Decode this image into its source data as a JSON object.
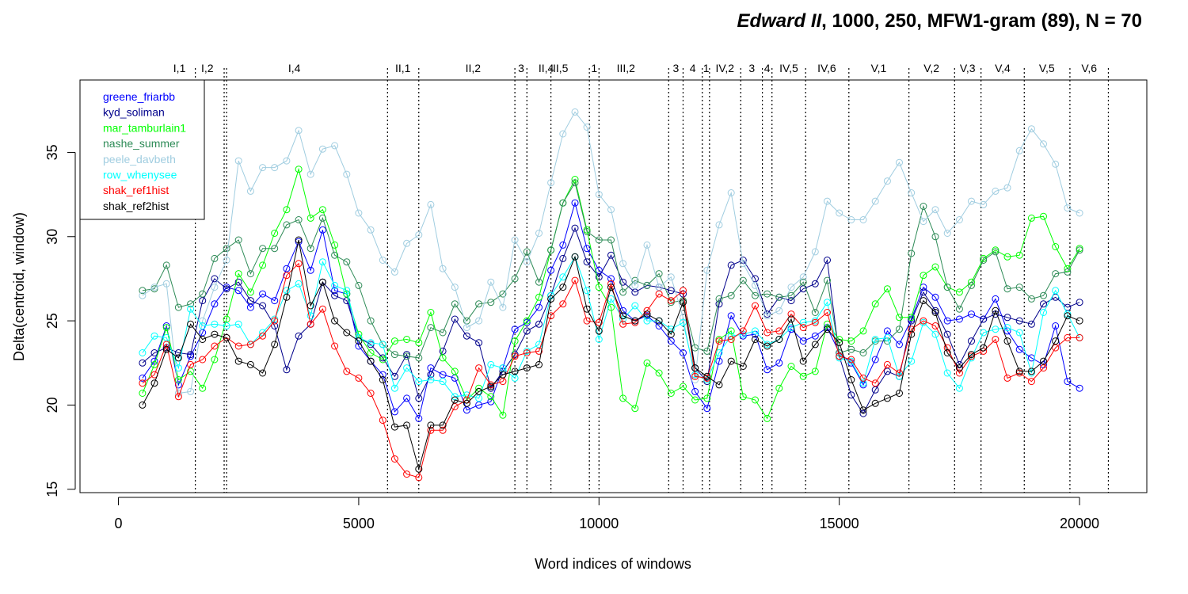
{
  "chart_data": {
    "type": "line",
    "title_italic": "Edward II",
    "title_rest": ", 1000, 250, MFW1-gram (89), N = 70",
    "xlabel": "Word indices of windows",
    "ylabel": "Delta(centroid, window)",
    "xlim": [
      -800,
      21400
    ],
    "ylim": [
      14.8,
      39.3
    ],
    "xticks": [
      0,
      5000,
      10000,
      15000,
      20000
    ],
    "xtick_labels": [
      "0",
      "5000",
      "10000",
      "15000",
      "20000"
    ],
    "yticks": [
      15,
      20,
      25,
      30,
      35
    ],
    "ytick_labels": [
      "15",
      "20",
      "25",
      "30",
      "35"
    ],
    "legend_position": "top-left",
    "x": [
      500,
      750,
      1000,
      1250,
      1500,
      1750,
      2000,
      2250,
      2500,
      2750,
      3000,
      3250,
      3500,
      3750,
      4000,
      4250,
      4500,
      4750,
      5000,
      5250,
      5500,
      5750,
      6000,
      6250,
      6500,
      6750,
      7000,
      7250,
      7500,
      7750,
      8000,
      8250,
      8500,
      8750,
      9000,
      9250,
      9500,
      9750,
      10000,
      10250,
      10500,
      10750,
      11000,
      11250,
      11500,
      11750,
      12000,
      12250,
      12500,
      12750,
      13000,
      13250,
      13500,
      13750,
      14000,
      14250,
      14500,
      14750,
      15000,
      15250,
      15500,
      15750,
      16000,
      16250,
      16500,
      16750,
      17000,
      17250,
      17500,
      17750,
      18000,
      18250,
      18500,
      18750,
      19000,
      19250,
      19500,
      19750,
      20000
    ],
    "series": [
      {
        "name": "greene_friarbb",
        "color": "#0000ff",
        "values": [
          21.6,
          22.6,
          24.7,
          21.2,
          22.9,
          24.3,
          26.0,
          27.0,
          26.8,
          25.8,
          26.6,
          26.2,
          28.1,
          29.7,
          28.0,
          30.4,
          26.8,
          26.6,
          23.5,
          22.6,
          21.8,
          19.6,
          20.4,
          19.2,
          22.2,
          21.8,
          21.6,
          19.7,
          20.0,
          20.2,
          22.2,
          24.5,
          24.9,
          25.8,
          28.0,
          29.5,
          32.0,
          29.3,
          28.0,
          27.5,
          25.6,
          25.0,
          25.3,
          24.7,
          23.8,
          23.1,
          20.8,
          19.8,
          22.6,
          25.3,
          24.1,
          24.2,
          22.1,
          22.5,
          24.5,
          23.8,
          24.1,
          24.6,
          23.1,
          22.5,
          21.2,
          22.7,
          24.4,
          23.6,
          25.1,
          27.0,
          26.4,
          25.0,
          25.1,
          25.4,
          25.1,
          26.3,
          24.4,
          23.3,
          22.8,
          22.4,
          24.7,
          21.4,
          21.0
        ]
      },
      {
        "name": "kyd_soliman",
        "color": "#00008b",
        "values": [
          22.5,
          23.1,
          23.4,
          23.1,
          23.0,
          26.2,
          27.5,
          26.9,
          27.3,
          26.2,
          25.9,
          24.7,
          22.1,
          24.1,
          24.8,
          27.3,
          26.5,
          26.2,
          24.0,
          23.6,
          22.8,
          21.7,
          23.0,
          20.4,
          21.8,
          23.2,
          25.1,
          24.1,
          23.7,
          21.0,
          22.0,
          23.0,
          24.4,
          24.8,
          26.5,
          28.7,
          30.5,
          28.5,
          27.6,
          28.9,
          27.3,
          26.7,
          27.1,
          27.0,
          26.8,
          26.6,
          22.2,
          21.4,
          26.0,
          28.3,
          28.6,
          27.5,
          25.4,
          26.4,
          26.2,
          26.9,
          27.2,
          28.6,
          22.9,
          20.6,
          19.5,
          20.9,
          22.0,
          21.7,
          25.0,
          26.7,
          25.6,
          24.2,
          22.4,
          23.8,
          25.1,
          25.4,
          25.2,
          25.0,
          24.8,
          26.0,
          26.4,
          25.8,
          26.1
        ]
      },
      {
        "name": "mar_tamburlain1",
        "color": "#00ff00",
        "values": [
          20.7,
          22.4,
          24.6,
          21.5,
          22.0,
          21.0,
          22.7,
          25.1,
          27.8,
          26.7,
          28.3,
          30.2,
          31.6,
          34.0,
          31.1,
          31.6,
          29.5,
          26.6,
          24.2,
          23.1,
          22.7,
          23.8,
          23.9,
          23.7,
          25.5,
          22.8,
          22.0,
          20.3,
          21.0,
          20.5,
          19.4,
          23.8,
          25.0,
          26.4,
          29.2,
          32.0,
          33.4,
          30.4,
          27.0,
          25.8,
          20.4,
          19.8,
          22.5,
          21.9,
          20.7,
          21.1,
          20.3,
          20.4,
          23.9,
          24.4,
          20.5,
          20.3,
          19.2,
          21.0,
          22.3,
          21.7,
          22.0,
          24.8,
          23.9,
          23.8,
          24.4,
          26.0,
          26.9,
          25.2,
          25.2,
          27.7,
          28.2,
          27.0,
          26.7,
          27.3,
          28.7,
          29.2,
          28.8,
          28.9,
          31.1,
          31.2,
          29.4,
          28.1,
          29.3
        ]
      },
      {
        "name": "nashe_summer",
        "color": "#2e8b57",
        "values": [
          26.8,
          26.9,
          28.3,
          25.8,
          26.0,
          26.6,
          28.7,
          29.3,
          29.8,
          27.8,
          29.3,
          29.3,
          30.7,
          31.0,
          29.3,
          31.1,
          28.9,
          28.5,
          27.1,
          25.0,
          23.6,
          23.0,
          22.9,
          22.8,
          24.6,
          24.3,
          26.0,
          25.0,
          26.0,
          26.1,
          26.6,
          27.5,
          29.1,
          27.3,
          29.2,
          32.0,
          33.2,
          30.3,
          29.8,
          29.8,
          26.7,
          27.4,
          27.1,
          27.8,
          26.1,
          26.2,
          23.4,
          23.2,
          26.3,
          26.5,
          27.4,
          26.5,
          26.6,
          26.4,
          26.5,
          27.3,
          25.5,
          27.4,
          23.1,
          23.3,
          23.1,
          23.8,
          23.8,
          24.5,
          29.0,
          31.8,
          30.0,
          27.0,
          25.7,
          27.1,
          28.6,
          29.1,
          26.9,
          27.0,
          26.3,
          26.5,
          27.8,
          27.9,
          29.2
        ]
      },
      {
        "name": "peele_davbeth",
        "color": "#a0cde0",
        "values": [
          26.5,
          27.0,
          27.2,
          20.7,
          20.8,
          25.0,
          27.0,
          28.6,
          34.5,
          32.7,
          34.1,
          34.1,
          34.5,
          36.3,
          33.7,
          35.2,
          35.4,
          33.7,
          31.4,
          30.4,
          28.6,
          27.9,
          29.6,
          30.1,
          31.9,
          28.1,
          27.0,
          24.6,
          25.0,
          27.3,
          25.8,
          29.8,
          28.5,
          30.2,
          33.2,
          36.1,
          37.4,
          36.5,
          32.5,
          31.6,
          28.4,
          27.1,
          29.5,
          27.0,
          27.6,
          25.2,
          21.5,
          28.0,
          30.7,
          32.6,
          28.4,
          27.1,
          25.3,
          25.6,
          27.0,
          27.6,
          29.1,
          32.1,
          31.4,
          31.0,
          31.0,
          32.1,
          33.3,
          34.4,
          32.6,
          30.9,
          31.6,
          30.2,
          31.0,
          32.1,
          31.9,
          32.7,
          32.9,
          35.1,
          36.4,
          35.5,
          34.3,
          31.7,
          31.4
        ]
      },
      {
        "name": "row_whenysee",
        "color": "#00ffff",
        "values": [
          23.1,
          24.1,
          24.0,
          22.2,
          25.7,
          24.7,
          24.8,
          24.7,
          24.8,
          23.6,
          24.3,
          25.1,
          26.8,
          27.2,
          25.3,
          28.5,
          27.1,
          26.8,
          24.0,
          23.7,
          23.6,
          21.0,
          22.2,
          21.4,
          21.5,
          21.4,
          20.5,
          20.6,
          20.4,
          22.4,
          22.2,
          21.6,
          23.2,
          23.6,
          26.5,
          27.6,
          28.8,
          26.8,
          23.9,
          26.3,
          25.1,
          25.9,
          25.0,
          25.0,
          24.5,
          24.9,
          21.8,
          21.5,
          23.1,
          24.1,
          24.2,
          24.4,
          23.6,
          23.9,
          24.6,
          24.9,
          25.0,
          26.1,
          22.8,
          22.6,
          21.3,
          23.9,
          24.0,
          21.7,
          22.6,
          24.9,
          24.2,
          21.9,
          21.0,
          22.8,
          24.3,
          24.5,
          24.6,
          24.3,
          21.9,
          25.5,
          26.8,
          25.4,
          24.0
        ]
      },
      {
        "name": "shak_ref1hist",
        "color": "#ff0000",
        "values": [
          21.3,
          21.8,
          23.6,
          20.5,
          22.4,
          22.7,
          23.5,
          24.0,
          23.5,
          23.6,
          24.1,
          25.0,
          27.7,
          28.4,
          24.8,
          25.7,
          23.5,
          22.0,
          21.6,
          20.7,
          19.1,
          16.8,
          15.9,
          15.7,
          18.5,
          18.5,
          19.9,
          20.3,
          22.2,
          21.2,
          21.4,
          22.9,
          23.1,
          23.2,
          25.3,
          26.0,
          27.4,
          25.0,
          24.9,
          27.2,
          24.8,
          24.9,
          25.6,
          26.6,
          26.2,
          26.8,
          21.7,
          21.6,
          23.8,
          23.9,
          24.4,
          25.9,
          24.3,
          24.4,
          25.4,
          24.6,
          24.9,
          25.5,
          22.9,
          22.7,
          21.6,
          21.3,
          22.4,
          21.9,
          24.5,
          25.0,
          24.7,
          23.4,
          21.9,
          22.9,
          23.2,
          23.9,
          21.6,
          21.9,
          21.4,
          22.2,
          23.4,
          24.0,
          24.0
        ]
      },
      {
        "name": "shak_ref2hist",
        "color": "#000000",
        "values": [
          20.0,
          21.3,
          23.3,
          22.8,
          24.8,
          23.9,
          24.2,
          24.0,
          22.6,
          22.4,
          21.9,
          23.6,
          26.4,
          29.8,
          25.9,
          27.3,
          25.0,
          24.3,
          23.8,
          22.6,
          21.5,
          18.7,
          18.8,
          16.2,
          18.8,
          18.8,
          20.3,
          20.1,
          20.8,
          21.1,
          21.8,
          22.0,
          22.2,
          22.4,
          26.3,
          27.0,
          28.8,
          25.7,
          24.4,
          27.0,
          25.3,
          25.0,
          25.4,
          25.0,
          24.2,
          26.1,
          22.2,
          21.7,
          21.2,
          22.6,
          22.3,
          23.9,
          23.5,
          23.9,
          25.1,
          22.6,
          23.6,
          24.5,
          23.7,
          21.5,
          19.7,
          20.1,
          20.4,
          20.7,
          24.2,
          26.2,
          25.5,
          23.1,
          22.2,
          23.0,
          23.4,
          25.6,
          23.8,
          22.0,
          22.0,
          22.6,
          23.8,
          25.3,
          25.0
        ]
      }
    ],
    "scene_boundaries": [
      1600,
      2200,
      2250,
      5600,
      6250,
      8250,
      8500,
      9000,
      9800,
      10000,
      11450,
      11750,
      12150,
      12300,
      12950,
      13400,
      13600,
      14300,
      15200,
      16450,
      17400,
      17950,
      18850,
      19800,
      20600
    ],
    "scene_labels": [
      {
        "label": "I,1",
        "x": 1270
      },
      {
        "label": "I,2",
        "x": 1850
      },
      {
        "label": "I,4",
        "x": 3660
      },
      {
        "label": "II,1",
        "x": 5920
      },
      {
        "label": "II,2",
        "x": 7380
      },
      {
        "label": "3",
        "x": 8380
      },
      {
        "label": "II,4",
        "x": 8900
      },
      {
        "label": "II,5",
        "x": 9200
      },
      {
        "label": "1",
        "x": 9900
      },
      {
        "label": "III,2",
        "x": 10560
      },
      {
        "label": "3",
        "x": 11600
      },
      {
        "label": "4",
        "x": 11950
      },
      {
        "label": "1",
        "x": 12230
      },
      {
        "label": "IV,2",
        "x": 12620
      },
      {
        "label": "3",
        "x": 13180
      },
      {
        "label": "4",
        "x": 13500
      },
      {
        "label": "IV,5",
        "x": 13950
      },
      {
        "label": "IV,6",
        "x": 14740
      },
      {
        "label": "V,1",
        "x": 15820
      },
      {
        "label": "V,2",
        "x": 16920
      },
      {
        "label": "V,3",
        "x": 17670
      },
      {
        "label": "V,4",
        "x": 18400
      },
      {
        "label": "V,5",
        "x": 19320
      },
      {
        "label": "V,6",
        "x": 20200
      }
    ]
  }
}
